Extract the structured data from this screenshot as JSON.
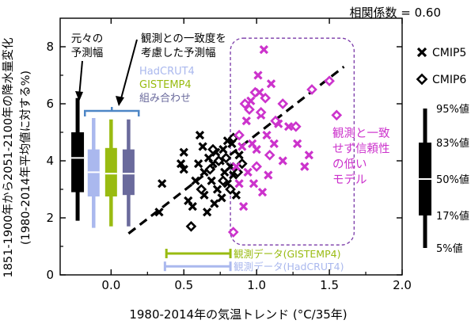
{
  "colors": {
    "cmip5": "#000000",
    "cmip6": "#000000",
    "outlier": "#cc33cc",
    "gistemp": "#99bb11",
    "hadcrut": "#aab8ee",
    "combined": "#6a6a9c",
    "bracket": "#4d86c6",
    "original_range": "#000000"
  },
  "chart_data": {
    "type": "scatter",
    "title": "相関係数 = 0.60",
    "xlabel": "1980-2014年の気温トレンド (°C/35年)",
    "ylabel_line1": "1851-1900年から2051-2100年の降水量変化",
    "ylabel_line2": "(1980-2014年平均値に対する%)",
    "xlim": [
      -0.35,
      2.0
    ],
    "ylim": [
      0,
      9
    ],
    "x_ticks": [
      0.0,
      0.5,
      1.0,
      1.5,
      2.0
    ],
    "x_tick_labels": [
      "0.0",
      "0.5",
      "1.0",
      "1.5",
      "2.0"
    ],
    "y_ticks": [
      0,
      2,
      4,
      6,
      8
    ],
    "y_tick_labels": [
      "0",
      "2",
      "4",
      "6",
      "8"
    ],
    "regression_line": {
      "x": [
        0.12,
        1.6
      ],
      "y": [
        1.45,
        7.3
      ]
    },
    "series": [
      {
        "name": "CMIP5",
        "marker": "x",
        "points": [
          [
            0.35,
            3.2
          ],
          [
            0.33,
            2.2
          ],
          [
            0.48,
            3.9
          ],
          [
            0.5,
            3.7
          ],
          [
            0.5,
            4.3
          ],
          [
            0.53,
            2.6
          ],
          [
            0.56,
            2.4
          ],
          [
            0.58,
            3.3
          ],
          [
            0.6,
            3.9
          ],
          [
            0.61,
            4.9
          ],
          [
            0.63,
            4.5
          ],
          [
            0.64,
            3.6
          ],
          [
            0.64,
            2.8
          ],
          [
            0.66,
            2.2
          ],
          [
            0.67,
            4.1
          ],
          [
            0.69,
            3.3
          ],
          [
            0.7,
            3.9
          ],
          [
            0.71,
            2.5
          ],
          [
            0.72,
            4.3
          ],
          [
            0.73,
            3.0
          ],
          [
            0.75,
            4.0
          ],
          [
            0.76,
            2.7
          ],
          [
            0.77,
            4.4
          ],
          [
            0.78,
            3.6
          ],
          [
            0.8,
            4.7
          ],
          [
            0.8,
            3.2
          ],
          [
            0.82,
            3.8
          ],
          [
            0.83,
            4.6
          ],
          [
            0.84,
            3.5
          ],
          [
            0.86,
            2.8
          ],
          [
            0.88,
            4.2
          ]
        ]
      },
      {
        "name": "CMIP6",
        "marker": "diamond",
        "points": [
          [
            0.55,
            1.7
          ],
          [
            0.62,
            3.0
          ],
          [
            0.68,
            3.7
          ],
          [
            0.7,
            4.4
          ],
          [
            0.74,
            4.0
          ],
          [
            0.77,
            3.3
          ],
          [
            0.79,
            4.1
          ],
          [
            0.82,
            3.0
          ],
          [
            0.84,
            4.8
          ],
          [
            0.87,
            3.6
          ],
          [
            0.9,
            3.9
          ]
        ]
      }
    ],
    "outliers": {
      "x_marks": [
        [
          0.86,
          3.8
        ],
        [
          0.88,
          3.2
        ],
        [
          0.9,
          4.5
        ],
        [
          0.91,
          2.4
        ],
        [
          0.93,
          5.4
        ],
        [
          0.94,
          3.6
        ],
        [
          0.96,
          6.1
        ],
        [
          0.97,
          4.6
        ],
        [
          0.98,
          3.2
        ],
        [
          1.0,
          4.4
        ],
        [
          1.01,
          7.0
        ],
        [
          1.02,
          6.4
        ],
        [
          1.03,
          5.6
        ],
        [
          1.04,
          2.9
        ],
        [
          1.05,
          7.9
        ],
        [
          1.07,
          4.9
        ],
        [
          1.08,
          3.5
        ],
        [
          1.1,
          6.7
        ],
        [
          1.12,
          4.6
        ],
        [
          1.15,
          5.3
        ],
        [
          1.18,
          4.0
        ],
        [
          1.22,
          5.2
        ],
        [
          1.28,
          4.6
        ],
        [
          1.33,
          3.8
        ],
        [
          1.36,
          4.2
        ]
      ],
      "diamonds": [
        [
          0.84,
          1.5
        ],
        [
          0.88,
          4.9
        ],
        [
          0.92,
          6.0
        ],
        [
          0.95,
          5.8
        ],
        [
          0.99,
          6.4
        ],
        [
          1.0,
          3.8
        ],
        [
          1.03,
          5.7
        ],
        [
          1.06,
          6.2
        ],
        [
          1.09,
          4.2
        ],
        [
          1.13,
          5.4
        ],
        [
          1.18,
          6.0
        ],
        [
          1.27,
          5.2
        ],
        [
          1.38,
          6.5
        ],
        [
          1.5,
          6.8
        ],
        [
          1.55,
          5.6
        ]
      ],
      "box": {
        "x": [
          0.82,
          1.67
        ],
        "y": [
          1.05,
          8.3
        ]
      },
      "label_lines": [
        "観測と一致",
        "せず信頼性",
        "の低い",
        "モデル"
      ]
    },
    "original_range_box": {
      "x": -0.23,
      "whisker": [
        1.9,
        6.2
      ],
      "box": [
        2.9,
        5.0
      ],
      "median": 4.1
    },
    "constrained_boxes": [
      {
        "name": "HadCRUT4",
        "x": -0.12,
        "whisker": [
          1.65,
          5.5
        ],
        "box": [
          2.75,
          4.4
        ],
        "median": 3.6
      },
      {
        "name": "GISTEMP4",
        "x": 0.0,
        "whisker": [
          1.7,
          5.45
        ],
        "box": [
          2.75,
          4.45
        ],
        "median": 3.55
      },
      {
        "name": "組み合わせ",
        "x": 0.12,
        "whisker": [
          1.7,
          5.45
        ],
        "box": [
          2.8,
          4.4
        ],
        "median": 3.55
      }
    ],
    "observed_trends": [
      {
        "name": "観測データ(GISTEMP4)",
        "range": [
          0.38,
          0.82
        ],
        "y": 0.75
      },
      {
        "name": "観測データ(HadCRUT4)",
        "range": [
          0.37,
          0.82
        ],
        "y": 0.3
      }
    ],
    "legend": [
      {
        "name": "CMIP5",
        "marker": "x"
      },
      {
        "name": "CMIP6",
        "marker": "diamond"
      }
    ],
    "percentile_guide": {
      "labels": [
        "95%値",
        "83%値",
        "50%値",
        "17%値",
        "5%値"
      ],
      "values": [
        95,
        83,
        50,
        17,
        5
      ]
    },
    "annotations": {
      "original_range_lines": [
        "元々の",
        "予測幅"
      ],
      "constrained_range_lines": [
        "観測との一致度を",
        "考慮した予測幅"
      ],
      "constrained_names": [
        "HadCRUT4",
        "GISTEMP4",
        "組み合わせ"
      ]
    }
  }
}
